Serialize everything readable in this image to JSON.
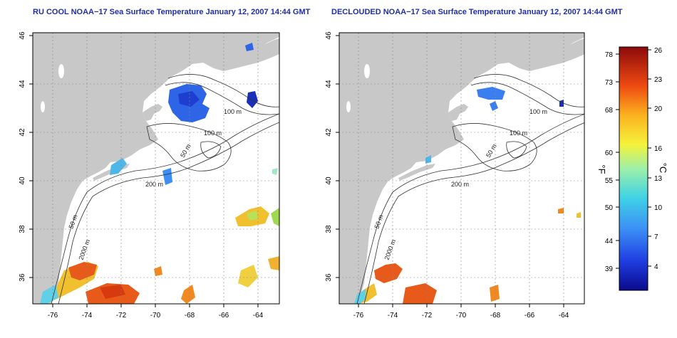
{
  "panels": [
    {
      "title": "RU COOL NOAA−17 Sea Surface Temperature January 12, 2007 14:44 GMT",
      "lon_ticks": [
        "-76",
        "-74",
        "-72",
        "-70",
        "-68",
        "-66",
        "-64"
      ],
      "lat_ticks": [
        "36",
        "38",
        "40",
        "42",
        "44",
        "46"
      ],
      "contour_labels": [
        "100 m",
        "100 m",
        "50 m",
        "200 m",
        "50 m",
        "2000 m"
      ]
    },
    {
      "title": "DECLOUDED NOAA−17 Sea Surface Temperature January 12, 2007 14:44 GMT",
      "lon_ticks": [
        "-76",
        "-74",
        "-72",
        "-70",
        "-68",
        "-66",
        "-64"
      ],
      "lat_ticks": [
        "36",
        "38",
        "40",
        "42",
        "44",
        "46"
      ],
      "contour_labels": [
        "100 m",
        "100 m",
        "50 m",
        "200 m",
        "50 m",
        "2000 m"
      ]
    }
  ],
  "colorbar": {
    "fahrenheit_ticks": [
      "78",
      "73",
      "68",
      "60",
      "55",
      "50",
      "44",
      "39"
    ],
    "celsius_ticks": [
      "26",
      "23",
      "20",
      "16",
      "13",
      "10",
      "7",
      "4"
    ],
    "fahrenheit_label": "°F",
    "celsius_label": "°C"
  },
  "colors": {
    "land": "#c8c8c8",
    "ocean": "#ffffff",
    "title": "#1f2fa8",
    "contour": "#333333"
  }
}
